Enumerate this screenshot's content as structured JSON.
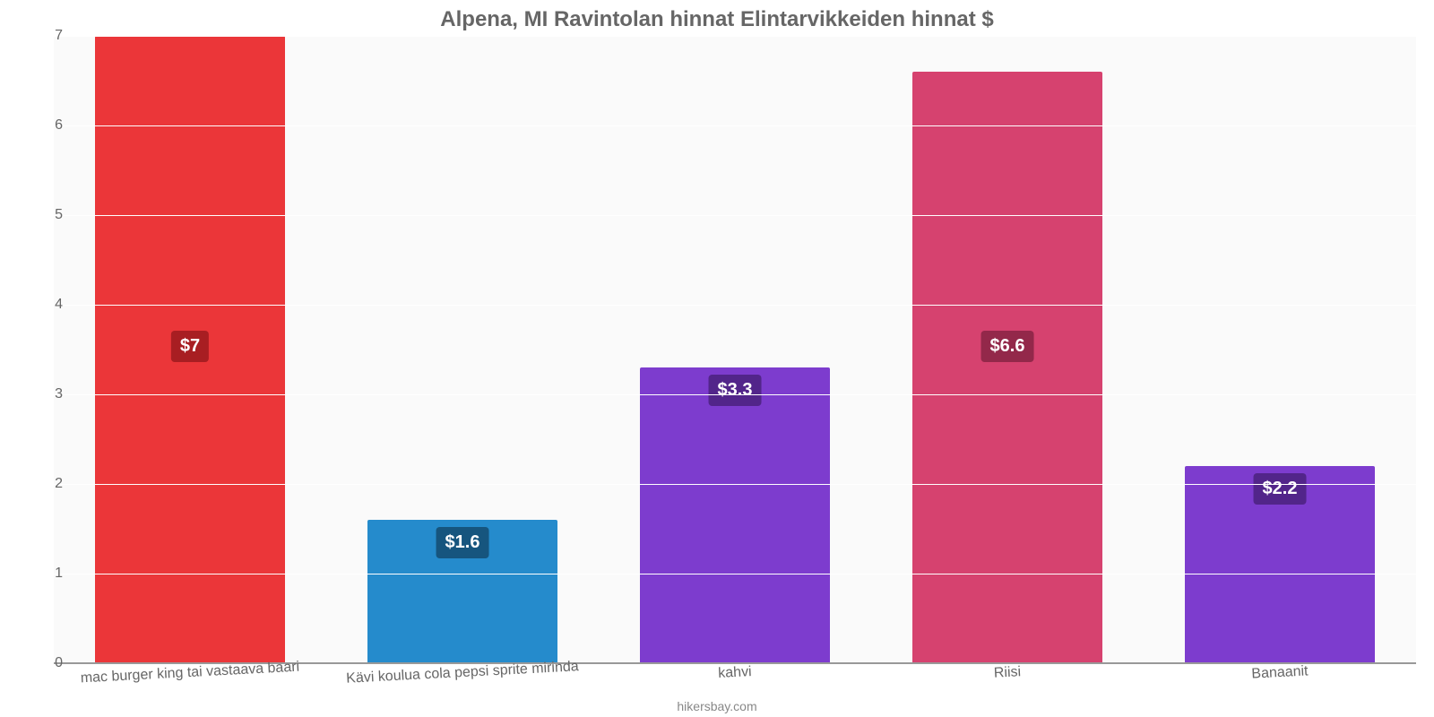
{
  "chart": {
    "type": "bar",
    "title": "Alpena, MI Ravintolan hinnat Elintarvikkeiden hinnat $",
    "title_fontsize": 24,
    "title_color": "#666666",
    "footer": "hikersbay.com",
    "footer_color": "#888888",
    "background_color": "#ffffff",
    "plot_background_color": "#fafafa",
    "grid_color": "#ffffff",
    "baseline_color": "#999999",
    "ylim": [
      0,
      7
    ],
    "yticks": [
      0,
      1,
      2,
      3,
      4,
      5,
      6,
      7
    ],
    "tick_color": "#666666",
    "tick_fontsize": 16,
    "xlabel_fontsize": 16,
    "xlabel_color": "#666666",
    "xlabel_rotation_deg": -3,
    "bar_width_ratio": 0.7,
    "value_label_fontsize": 20,
    "value_label_text_color": "#ffffff",
    "value_label_y_ratio": 0.47,
    "categories": [
      "mac burger king tai vastaava baari",
      "Kävi koulua cola pepsi sprite mirinda",
      "kahvi",
      "Riisi",
      "Banaanit"
    ],
    "values": [
      7,
      1.6,
      3.3,
      6.6,
      2.2
    ],
    "value_labels": [
      "$7",
      "$1.6",
      "$3.3",
      "$6.6",
      "$2.2"
    ],
    "bar_colors": [
      "#eb3639",
      "#258bcc",
      "#7d3cce",
      "#d6426f",
      "#7d3cce"
    ],
    "label_bg_colors": [
      "#a81e22",
      "#16557e",
      "#52258a",
      "#93284a",
      "#52258a"
    ]
  }
}
